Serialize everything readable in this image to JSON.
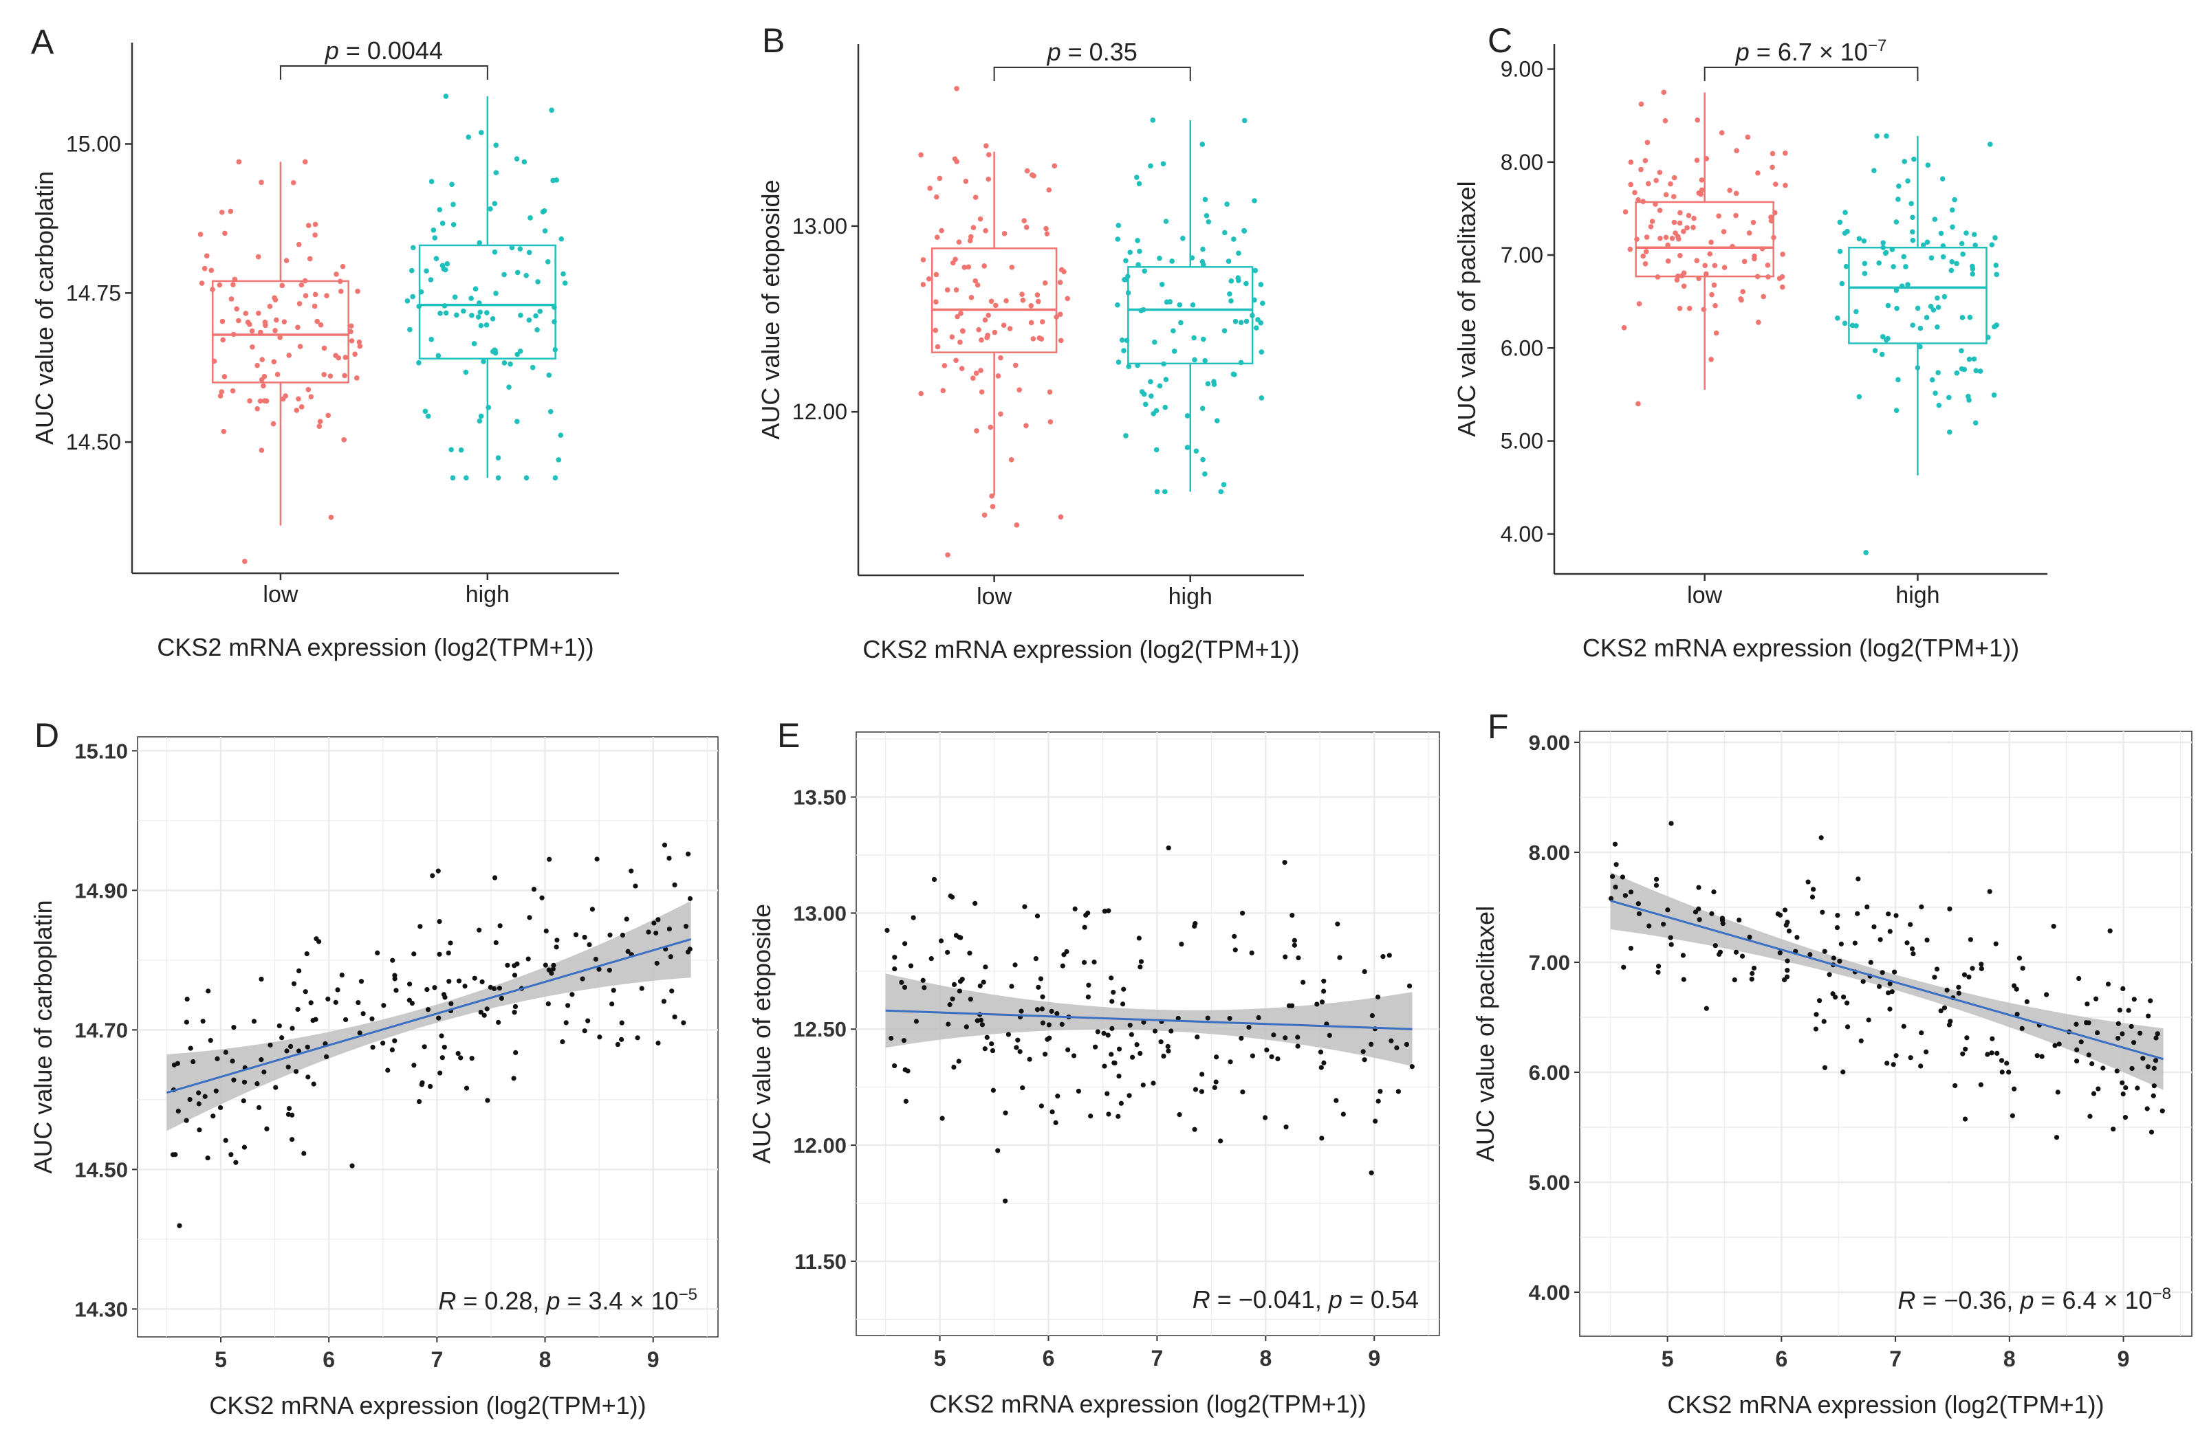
{
  "figure": {
    "colors": {
      "low": "#f07470",
      "high": "#1fbfbc",
      "point": "#111111",
      "fit": "#3b6fc2",
      "band": "#bfbfbf",
      "grid": "#ebebeb",
      "axis": "#333333"
    }
  },
  "chart_data": [
    {
      "panel": "A",
      "type": "box",
      "ylabel": "AUC value of carboplatin",
      "xlabel": "CKS2 mRNA expression (log2(TPM+1))",
      "categories": [
        "low",
        "high"
      ],
      "ylim": [
        14.28,
        15.17
      ],
      "yticks": [
        14.5,
        14.75,
        15.0
      ],
      "ytick_labels": [
        "14.50",
        "14.75",
        "15.00"
      ],
      "p_label": "p = 0.0044",
      "p_prefix": "p",
      "p_text": " = 0.0044",
      "boxes": [
        {
          "name": "low",
          "q1": 14.6,
          "median": 14.68,
          "q3": 14.77,
          "whisker_low": 14.36,
          "whisker_high": 14.97,
          "n_points": 110,
          "seed": 11,
          "max": 14.97,
          "min": 14.3
        },
        {
          "name": "high",
          "q1": 14.64,
          "median": 14.73,
          "q3": 14.83,
          "whisker_low": 14.44,
          "whisker_high": 15.08,
          "n_points": 110,
          "seed": 12,
          "max": 15.08,
          "min": 14.44
        }
      ]
    },
    {
      "panel": "B",
      "type": "box",
      "ylabel": "AUC value of etoposide",
      "xlabel": "CKS2 mRNA expression (log2(TPM+1))",
      "categories": [
        "low",
        "high"
      ],
      "ylim": [
        11.12,
        13.98
      ],
      "yticks": [
        12.0,
        13.0
      ],
      "ytick_labels": [
        "12.00",
        "13.00"
      ],
      "p_label": "p = 0.35",
      "p_prefix": "p",
      "p_text": " = 0.35",
      "boxes": [
        {
          "name": "low",
          "q1": 12.32,
          "median": 12.55,
          "q3": 12.88,
          "whisker_low": 11.55,
          "whisker_high": 13.4,
          "n_points": 110,
          "seed": 21,
          "max": 13.74,
          "min": 11.23
        },
        {
          "name": "high",
          "q1": 12.26,
          "median": 12.55,
          "q3": 12.78,
          "whisker_low": 11.57,
          "whisker_high": 13.57,
          "n_points": 110,
          "seed": 22,
          "max": 13.57,
          "min": 11.57
        }
      ]
    },
    {
      "panel": "C",
      "type": "box",
      "ylabel": "AUC value of paclitaxel",
      "xlabel": "CKS2 mRNA expression (log2(TPM+1))",
      "categories": [
        "low",
        "high"
      ],
      "ylim": [
        3.57,
        9.27
      ],
      "yticks": [
        4,
        5,
        6,
        7,
        8,
        9
      ],
      "ytick_labels": [
        "4.00",
        "5.00",
        "6.00",
        "7.00",
        "8.00",
        "9.00"
      ],
      "p_label": "p = 6.7 × 10−7",
      "p_prefix": "p",
      "p_text": " = 6.7 × 10",
      "p_exp": "−7",
      "boxes": [
        {
          "name": "low",
          "q1": 6.77,
          "median": 7.08,
          "q3": 7.57,
          "whisker_low": 5.55,
          "whisker_high": 8.75,
          "n_points": 115,
          "seed": 31,
          "max": 8.75,
          "min": 5.4
        },
        {
          "name": "high",
          "q1": 6.05,
          "median": 6.65,
          "q3": 7.08,
          "whisker_low": 4.63,
          "whisker_high": 8.28,
          "n_points": 115,
          "seed": 32,
          "max": 8.28,
          "min": 3.8
        }
      ]
    },
    {
      "panel": "D",
      "type": "scatter",
      "ylabel": "AUC value of carboplatin",
      "xlabel": "CKS2 mRNA expression (log2(TPM+1))",
      "xlim": [
        4.23,
        9.6
      ],
      "ylim": [
        14.26,
        15.12
      ],
      "xticks": [
        5,
        6,
        7,
        8,
        9
      ],
      "xtick_labels": [
        "5",
        "6",
        "7",
        "8",
        "9"
      ],
      "yticks": [
        14.3,
        14.5,
        14.7,
        14.9,
        15.1
      ],
      "ytick_labels": [
        "14.30",
        "14.50",
        "14.70",
        "14.90",
        "15.10"
      ],
      "fit": {
        "x0": 4.5,
        "y0": 14.61,
        "x1": 9.35,
        "y1": 14.83,
        "band_start": 0.055,
        "band_end": 0.055,
        "band_mid": 0.013
      },
      "n_points": 220,
      "seed": 41,
      "y_center": 14.705,
      "y_spread": 0.13,
      "x_range": [
        4.5,
        9.35
      ],
      "stat_R": "R",
      "stat_mid": " = 0.28, ",
      "stat_p": "p",
      "stat_end": " = 3.4 × 10",
      "stat_exp": "−5",
      "stat_label": "R = 0.28, p = 3.4 × 10−5"
    },
    {
      "panel": "E",
      "type": "scatter",
      "ylabel": "AUC value of etoposide",
      "xlabel": "CKS2 mRNA expression (log2(TPM+1))",
      "xlim": [
        4.23,
        9.6
      ],
      "ylim": [
        11.18,
        13.78
      ],
      "xticks": [
        5,
        6,
        7,
        8,
        9
      ],
      "xtick_labels": [
        "5",
        "6",
        "7",
        "8",
        "9"
      ],
      "yticks": [
        11.5,
        12.0,
        12.5,
        13.0,
        13.5
      ],
      "ytick_labels": [
        "11.50",
        "12.00",
        "12.50",
        "13.00",
        "13.50"
      ],
      "fit": {
        "x0": 4.5,
        "y0": 12.58,
        "x1": 9.35,
        "y1": 12.5,
        "band_start": 0.16,
        "band_end": 0.16,
        "band_mid": 0.045
      },
      "n_points": 220,
      "seed": 51,
      "y_center": 12.54,
      "y_spread": 0.42,
      "x_range": [
        4.5,
        9.35
      ],
      "stat_R": "R",
      "stat_mid": " = −0.041, ",
      "stat_p": "p",
      "stat_end": " = 0.54",
      "stat_exp": "",
      "stat_label": "R = −0.041, p = 0.54"
    },
    {
      "panel": "F",
      "type": "scatter",
      "ylabel": "AUC value of paclitaxel",
      "xlabel": "CKS2 mRNA expression (log2(TPM+1))",
      "xlim": [
        4.23,
        9.6
      ],
      "ylim": [
        3.6,
        9.1
      ],
      "xticks": [
        5,
        6,
        7,
        8,
        9
      ],
      "xtick_labels": [
        "5",
        "6",
        "7",
        "8",
        "9"
      ],
      "yticks": [
        4,
        5,
        6,
        7,
        8,
        9
      ],
      "ytick_labels": [
        "4.00",
        "5.00",
        "6.00",
        "7.00",
        "8.00",
        "9.00"
      ],
      "fit": {
        "x0": 4.5,
        "y0": 7.56,
        "x1": 9.35,
        "y1": 6.12,
        "band_start": 0.26,
        "band_end": 0.28,
        "band_mid": 0.07
      },
      "n_points": 220,
      "seed": 61,
      "y_center": 6.84,
      "y_spread": 0.72,
      "x_range": [
        4.5,
        9.35
      ],
      "stat_R": "R",
      "stat_mid": " = −0.36, ",
      "stat_p": "p",
      "stat_end": " = 6.4 × 10",
      "stat_exp": "−8",
      "stat_label": "R = −0.36, p = 6.4 × 10−8"
    }
  ]
}
